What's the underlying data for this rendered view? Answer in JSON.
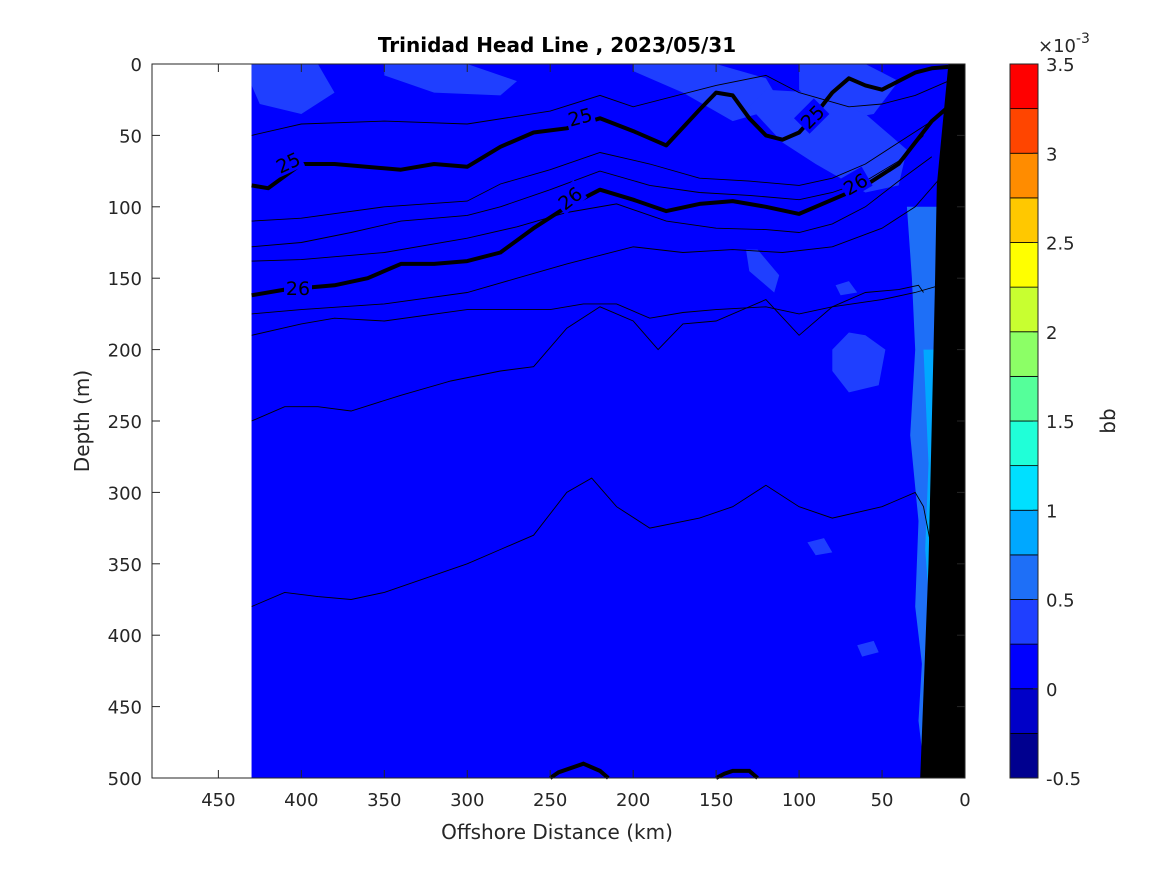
{
  "chart_data": {
    "type": "heatmap",
    "title": "Trinidad Head Line , 2023/05/31",
    "xlabel": "Offshore Distance (km)",
    "ylabel": "Depth (m)",
    "xlim": [
      490,
      0
    ],
    "ylim": [
      0,
      500
    ],
    "x_reversed": true,
    "y_reversed": true,
    "x_ticks": [
      450,
      400,
      350,
      300,
      250,
      200,
      150,
      100,
      50,
      0
    ],
    "y_ticks": [
      0,
      50,
      100,
      150,
      200,
      250,
      300,
      350,
      400,
      450,
      500
    ],
    "section_start_km": 430,
    "colorbar": {
      "label": "bb",
      "exponent_label": "×10",
      "exponent": "-3",
      "range": [
        -0.5,
        3.5
      ],
      "ticks": [
        0,
        0.5,
        1,
        1.5,
        2,
        2.5,
        3,
        3.5
      ],
      "tick_labels": [
        "0",
        "0.5",
        "1",
        "1.5",
        "2",
        "2.5",
        "3",
        "3.5"
      ],
      "bottom_label": "-0.5",
      "levels": [
        -0.5,
        -0.25,
        0,
        0.25,
        0.5,
        0.75,
        1,
        1.25,
        1.5,
        1.75,
        2,
        2.25,
        2.5,
        2.75,
        3,
        3.25,
        3.5
      ],
      "colors": [
        "#00008f",
        "#0000c8",
        "#0000ff",
        "#1f3fff",
        "#1e6ff7",
        "#00a8ff",
        "#00e0ff",
        "#20ffd8",
        "#55ff9a",
        "#8cff66",
        "#c8ff30",
        "#ffff00",
        "#ffc800",
        "#ff8c00",
        "#ff4500",
        "#ff0000",
        "#9a0000"
      ]
    },
    "background_value": 0.1,
    "highlight_value": 0.35,
    "labeled_contours": [
      {
        "label": "25",
        "x": [
          430,
          420,
          400,
          380,
          340,
          320,
          300,
          280,
          260,
          240,
          220,
          200,
          180,
          160,
          150,
          140,
          130,
          120,
          110,
          100,
          90,
          80,
          70,
          60,
          50,
          40,
          30,
          20,
          10
        ],
        "y": [
          85,
          87,
          70,
          70,
          74,
          70,
          72,
          58,
          48,
          45,
          38,
          47,
          57,
          32,
          20,
          22,
          38,
          50,
          53,
          48,
          35,
          20,
          10,
          15,
          18,
          12,
          6,
          3,
          2
        ]
      },
      {
        "label": "26",
        "x": [
          430,
          410,
          380,
          360,
          340,
          320,
          300,
          280,
          260,
          240,
          220,
          200,
          180,
          160,
          140,
          120,
          100,
          80,
          60,
          40,
          30,
          20,
          10
        ],
        "y": [
          162,
          158,
          155,
          150,
          140,
          140,
          138,
          132,
          115,
          100,
          88,
          95,
          103,
          98,
          96,
          100,
          105,
          95,
          85,
          70,
          55,
          40,
          30
        ]
      }
    ],
    "thin_contours": [
      {
        "x": [
          430,
          400,
          350,
          300,
          250,
          220,
          200,
          150,
          120,
          100,
          70,
          50,
          30,
          10
        ],
        "y": [
          50,
          42,
          40,
          42,
          33,
          22,
          30,
          15,
          8,
          20,
          30,
          28,
          22,
          12
        ]
      },
      {
        "x": [
          430,
          400,
          350,
          300,
          280,
          250,
          220,
          190,
          160,
          130,
          100,
          80,
          60,
          40,
          20,
          10
        ],
        "y": [
          110,
          108,
          100,
          96,
          84,
          74,
          62,
          70,
          80,
          82,
          85,
          80,
          70,
          55,
          40,
          30
        ]
      },
      {
        "x": [
          430,
          400,
          370,
          340,
          300,
          280,
          250,
          220,
          190,
          160,
          130,
          100,
          80,
          60,
          40,
          25
        ],
        "y": [
          128,
          125,
          118,
          110,
          106,
          100,
          88,
          75,
          85,
          90,
          92,
          95,
          90,
          82,
          68,
          50
        ]
      },
      {
        "x": [
          430,
          400,
          350,
          300,
          270,
          240,
          210,
          180,
          150,
          120,
          100,
          80,
          60,
          40,
          20
        ],
        "y": [
          138,
          137,
          132,
          122,
          114,
          104,
          98,
          110,
          115,
          116,
          118,
          112,
          100,
          82,
          65
        ]
      },
      {
        "x": [
          430,
          400,
          350,
          300,
          270,
          240,
          200,
          170,
          140,
          110,
          80,
          50,
          30,
          15
        ],
        "y": [
          175,
          172,
          168,
          160,
          150,
          140,
          128,
          132,
          130,
          132,
          128,
          115,
          100,
          80
        ]
      },
      {
        "x": [
          430,
          400,
          380,
          350,
          300,
          250,
          230,
          210,
          190,
          170,
          150,
          120,
          100,
          80,
          50,
          30,
          15
        ],
        "y": [
          190,
          182,
          178,
          180,
          172,
          172,
          168,
          168,
          178,
          174,
          172,
          170,
          175,
          170,
          165,
          160,
          155
        ]
      },
      {
        "x": [
          430,
          410,
          390,
          370,
          340,
          310,
          280,
          260,
          240,
          220,
          200,
          185,
          170,
          150,
          120,
          100,
          80,
          60,
          40,
          28,
          25
        ],
        "y": [
          250,
          240,
          240,
          243,
          232,
          222,
          215,
          212,
          185,
          170,
          180,
          200,
          182,
          180,
          165,
          190,
          170,
          160,
          158,
          155,
          160
        ]
      },
      {
        "x": [
          430,
          410,
          390,
          370,
          350,
          300,
          280,
          260,
          240,
          225,
          210,
          190,
          160,
          140,
          120,
          100,
          80,
          50,
          30,
          25,
          20
        ],
        "y": [
          380,
          370,
          373,
          375,
          370,
          350,
          340,
          330,
          300,
          290,
          310,
          325,
          318,
          310,
          295,
          310,
          318,
          310,
          300,
          310,
          340
        ]
      }
    ],
    "bottom_contours": [
      {
        "label": "",
        "x": [
          250,
          245,
          230,
          220,
          215
        ],
        "y": [
          500,
          496,
          490,
          495,
          500
        ]
      },
      {
        "label": "",
        "x": [
          150,
          145,
          140,
          130,
          125
        ],
        "y": [
          500,
          497,
          495,
          495,
          500
        ]
      }
    ],
    "label_positions": [
      {
        "text": "25",
        "x": 408,
        "y": 69,
        "angle": -25
      },
      {
        "text": "25",
        "x": 232,
        "y": 37,
        "angle": -15
      },
      {
        "text": "25",
        "x": 92,
        "y": 37,
        "angle": -45
      },
      {
        "text": "26",
        "x": 402,
        "y": 157,
        "angle": 0
      },
      {
        "text": "26",
        "x": 238,
        "y": 94,
        "angle": -38
      },
      {
        "text": "26",
        "x": 66,
        "y": 84,
        "angle": -30
      }
    ],
    "light_patches": [
      {
        "x": [
          430,
          390,
          380,
          400,
          425,
          430
        ],
        "y": [
          0,
          0,
          20,
          35,
          28,
          15
        ]
      },
      {
        "x": [
          350,
          300,
          270,
          280,
          320,
          350
        ],
        "y": [
          0,
          0,
          12,
          22,
          20,
          8
        ]
      },
      {
        "x": [
          200,
          150,
          120,
          110,
          140,
          170,
          200
        ],
        "y": [
          0,
          0,
          10,
          30,
          40,
          20,
          5
        ]
      },
      {
        "x": [
          100,
          60,
          40,
          55,
          80,
          100
        ],
        "y": [
          0,
          0,
          12,
          35,
          40,
          18
        ]
      },
      {
        "x": [
          130,
          110,
          90,
          60,
          40,
          35,
          60,
          90,
          120,
          130
        ],
        "y": [
          30,
          55,
          70,
          90,
          85,
          60,
          35,
          20,
          18,
          30
        ]
      },
      {
        "x": [
          132,
          130,
          115,
          112,
          125,
          132
        ],
        "y": [
          130,
          145,
          160,
          148,
          130,
          130
        ]
      },
      {
        "x": [
          80,
          70,
          60,
          48,
          52,
          70,
          80
        ],
        "y": [
          200,
          188,
          190,
          200,
          225,
          230,
          215
        ]
      },
      {
        "x": [
          78,
          70,
          65,
          75,
          78
        ],
        "y": [
          155,
          152,
          160,
          162,
          155
        ]
      },
      {
        "x": [
          95,
          85,
          80,
          90,
          95
        ],
        "y": [
          335,
          332,
          342,
          344,
          335
        ]
      },
      {
        "x": [
          65,
          55,
          52,
          62,
          65
        ],
        "y": [
          407,
          404,
          412,
          415,
          407
        ]
      }
    ],
    "coast_band": {
      "x": [
        35,
        32,
        30,
        33,
        28,
        30,
        26,
        28,
        24,
        22
      ],
      "y": [
        100,
        150,
        200,
        260,
        320,
        380,
        420,
        460,
        500,
        500
      ]
    },
    "coast_band_inner": {
      "x": [
        25,
        22,
        24,
        20,
        22,
        18
      ],
      "y": [
        200,
        280,
        340,
        400,
        450,
        500
      ]
    },
    "seafloor": {
      "x": [
        0,
        10,
        17,
        18,
        19,
        22,
        27,
        0
      ],
      "y": [
        0,
        0,
        85,
        150,
        200,
        350,
        500,
        500
      ]
    }
  }
}
